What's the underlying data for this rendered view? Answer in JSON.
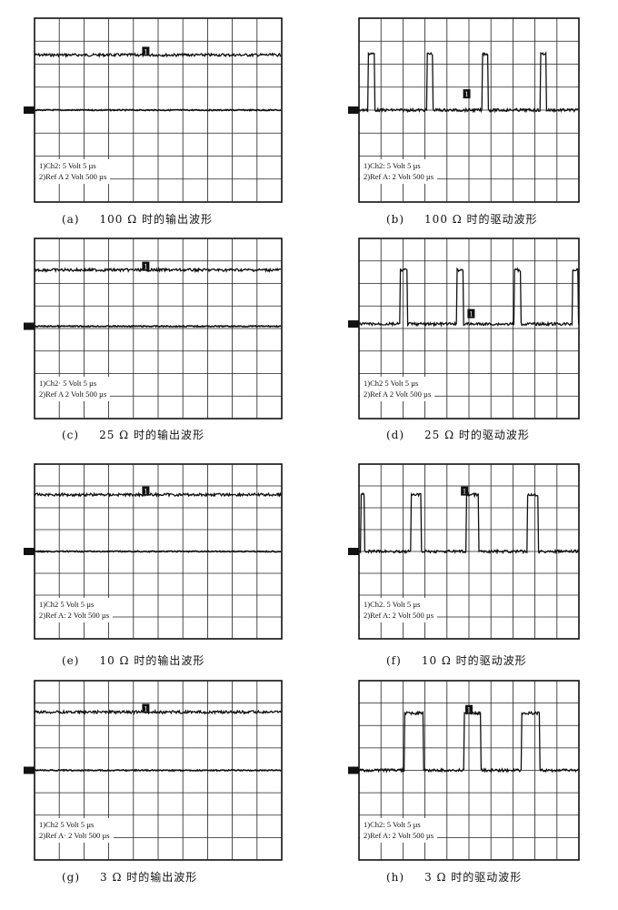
{
  "chart_data": [
    {
      "id": "a",
      "type": "line",
      "label": "(a)",
      "caption": "100 Ω 时的输出波形",
      "legend": [
        "1)Ch2: 5 Volt 5 µs",
        "2)Ref A  2 Volt 500 µs"
      ],
      "grid": {
        "x_divisions": 10,
        "y_divisions": 8
      },
      "series": [
        {
          "trace": "1",
          "level_div": 2.4
        },
        {
          "trace": "ref",
          "level_div": 0
        }
      ],
      "pulses": [],
      "marker_x_div": 4.5
    },
    {
      "id": "b",
      "type": "line",
      "label": "(b)",
      "caption": "100 Ω 时的驱动波形",
      "legend": [
        "1)Ch2: 5 Volt 5 µs",
        "2)Ref A: 2 Volt 500 µs"
      ],
      "grid": {
        "x_divisions": 10,
        "y_divisions": 8
      },
      "series": [
        {
          "trace": "1",
          "level_div": 0,
          "pulse_high_div": 2.45
        }
      ],
      "pulses": [
        [
          0.41,
          0.7
        ],
        [
          3.1,
          3.35
        ],
        [
          5.6,
          5.87
        ],
        [
          8.26,
          8.5
        ]
      ],
      "marker_x_div": 4.9,
      "marker_level_div": 0.55
    },
    {
      "id": "c",
      "type": "line",
      "label": "(c)",
      "caption": "25 Ω 时的输出波形",
      "legend": [
        "1)Ch2· 5 Volt 5 µs",
        "2)Ref A  2 Volt 500 µs"
      ],
      "grid": {
        "x_divisions": 10,
        "y_divisions": 8
      },
      "series": [
        {
          "trace": "1",
          "level_div": 2.6
        },
        {
          "trace": "ref",
          "level_div": 0.1
        }
      ],
      "pulses": [],
      "marker_x_div": 4.5
    },
    {
      "id": "d",
      "type": "line",
      "label": "(d)",
      "caption": "25 Ω 时的驱动波形",
      "legend": [
        "1)Ch2  5 Volt 5 µs",
        "2)Ref A  2 Volt 500 µs"
      ],
      "grid": {
        "x_divisions": 10,
        "y_divisions": 8
      },
      "series": [
        {
          "trace": "1",
          "level_div": 0.2,
          "pulse_high_div": 2.6
        }
      ],
      "pulses": [
        [
          1.86,
          2.19
        ],
        [
          4.46,
          4.75
        ],
        [
          7.07,
          7.36
        ],
        [
          9.71,
          9.96
        ]
      ],
      "marker_x_div": 5.1,
      "marker_level_div": 0.5
    },
    {
      "id": "e",
      "type": "line",
      "label": "(e)",
      "caption": "10 Ω 时的输出波形",
      "legend": [
        "1)Ch2  5 Volt 5 µs",
        "2)Ref A: 2 Volt 500 µs"
      ],
      "grid": {
        "x_divisions": 10,
        "y_divisions": 8
      },
      "series": [
        {
          "trace": "1",
          "level_div": 2.6
        },
        {
          "trace": "ref",
          "level_div": 0
        }
      ],
      "pulses": [],
      "marker_x_div": 4.5
    },
    {
      "id": "f",
      "type": "line",
      "label": "(f)",
      "caption": "10 Ω 时的驱动波形",
      "legend": [
        "1)Ch2. 5 Volt 5 µs",
        "2)Ref A: 2 Volt 500 µs"
      ],
      "grid": {
        "x_divisions": 10,
        "y_divisions": 8
      },
      "series": [
        {
          "trace": "1",
          "level_div": 0,
          "pulse_high_div": 2.6
        }
      ],
      "pulses": [
        [
          0.08,
          0.25
        ],
        [
          2.36,
          2.81
        ],
        [
          4.88,
          5.45
        ],
        [
          7.64,
          8.14
        ]
      ],
      "marker_x_div": 4.8,
      "marker_level_div": 2.6
    },
    {
      "id": "g",
      "type": "line",
      "label": "(g)",
      "caption": "3 Ω 时的输出波形",
      "legend": [
        "1)Ch2  5 Volt 5 µs",
        "2)Ref A· 2 Volt 500 µs"
      ],
      "grid": {
        "x_divisions": 10,
        "y_divisions": 8
      },
      "series": [
        {
          "trace": "1",
          "level_div": 2.6
        },
        {
          "trace": "ref",
          "level_div": 0
        }
      ],
      "pulses": [],
      "marker_x_div": 4.5
    },
    {
      "id": "h",
      "type": "line",
      "label": "(h)",
      "caption": "3 Ω 时的驱动波形",
      "legend": [
        "1)Ch2: 5 Volt 5 µs",
        "2)Ref A: 2 Volt 500 µs"
      ],
      "grid": {
        "x_divisions": 10,
        "y_divisions": 8
      },
      "series": [
        {
          "trace": "1",
          "level_div": 0,
          "pulse_high_div": 2.55
        }
      ],
      "pulses": [
        [
          2.07,
          2.93
        ],
        [
          4.79,
          5.54
        ],
        [
          7.4,
          8.22
        ]
      ],
      "marker_x_div": 5.0,
      "marker_level_div": 2.55
    }
  ],
  "marker_text": "1"
}
